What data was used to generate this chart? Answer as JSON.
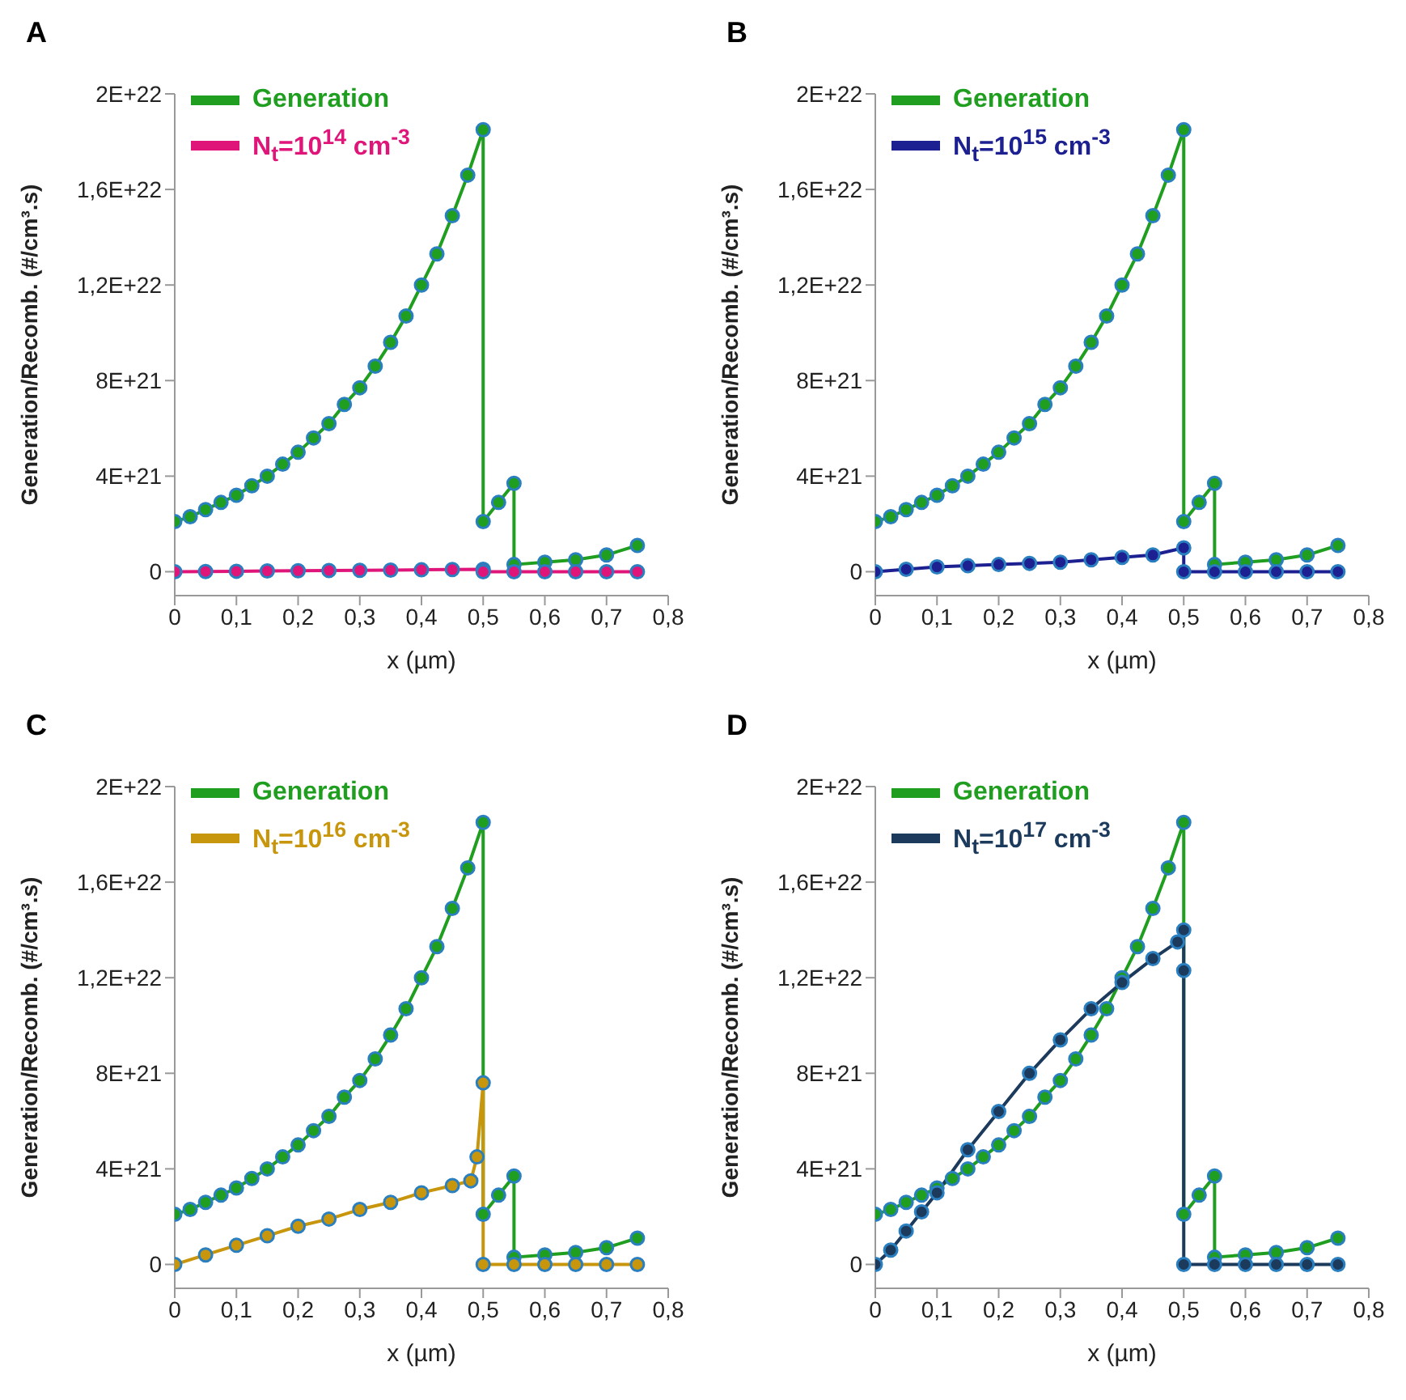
{
  "chart_data": [
    {
      "type": "line",
      "title": "A",
      "xlabel": "x (µm)",
      "ylabel": "Generation/Recomb. (#/cm³.s)",
      "xlim": [
        0,
        0.8
      ],
      "xticks": [
        {
          "value": 0,
          "label": "0"
        },
        {
          "value": 0.1,
          "label": "0,1"
        },
        {
          "value": 0.2,
          "label": "0,2"
        },
        {
          "value": 0.3,
          "label": "0,3"
        },
        {
          "value": 0.4,
          "label": "0,4"
        },
        {
          "value": 0.5,
          "label": "0,5"
        },
        {
          "value": 0.6,
          "label": "0,6"
        },
        {
          "value": 0.7,
          "label": "0,7"
        },
        {
          "value": 0.8,
          "label": "0,8"
        }
      ],
      "ylim": [
        -1e+21,
        2e+22
      ],
      "yticks": [
        {
          "value": 0,
          "label": "0"
        },
        {
          "value": 4e+21,
          "label": "4E+21"
        },
        {
          "value": 8e+21,
          "label": "8E+21"
        },
        {
          "value": 1.2e+22,
          "label": "1,2E+22"
        },
        {
          "value": 1.6e+22,
          "label": "1,6E+22"
        },
        {
          "value": 2e+22,
          "label": "2E+22"
        }
      ],
      "legend": "top left",
      "marker": "circle",
      "line_style": "solid",
      "series": [
        {
          "name": "Generation",
          "color": "#1f9e1f",
          "x": [
            0,
            0.025,
            0.05,
            0.075,
            0.1,
            0.125,
            0.15,
            0.175,
            0.2,
            0.225,
            0.25,
            0.275,
            0.3,
            0.325,
            0.35,
            0.375,
            0.4,
            0.425,
            0.45,
            0.475,
            0.5,
            0.5,
            0.525,
            0.55,
            0.55,
            0.6,
            0.65,
            0.7,
            0.75
          ],
          "values": [
            2.1e+21,
            2.3e+21,
            2.6e+21,
            2.9e+21,
            3.2e+21,
            3.6e+21,
            4e+21,
            4.5e+21,
            5e+21,
            5.6e+21,
            6.2e+21,
            7e+21,
            7.7e+21,
            8.6e+21,
            9.6e+21,
            1.07e+22,
            1.2e+22,
            1.33e+22,
            1.49e+22,
            1.66e+22,
            1.85e+22,
            2.1e+21,
            2.9e+21,
            3.7e+21,
            3e+20,
            4e+20,
            5e+20,
            7e+20,
            1.1e+21
          ]
        },
        {
          "name": "N$_{t}$=10$^{14}$ cm$^{-3}$",
          "color": "#e0157a",
          "x": [
            0,
            0.05,
            0.1,
            0.15,
            0.2,
            0.25,
            0.3,
            0.35,
            0.4,
            0.45,
            0.5,
            0.5,
            0.55,
            0.6,
            0.65,
            0.7,
            0.75
          ],
          "values": [
            0,
            1e+19,
            2e+19,
            3e+19,
            4e+19,
            5e+19,
            6e+19,
            7e+19,
            8e+19,
            9e+19,
            1e+20,
            0,
            0,
            0,
            0,
            0,
            0
          ]
        }
      ]
    },
    {
      "type": "line",
      "title": "B",
      "xlabel": "x (µm)",
      "ylabel": "Generation/Recomb. (#/cm³.s)",
      "xlim": [
        0,
        0.8
      ],
      "xticks": [
        {
          "value": 0,
          "label": "0"
        },
        {
          "value": 0.1,
          "label": "0,1"
        },
        {
          "value": 0.2,
          "label": "0,2"
        },
        {
          "value": 0.3,
          "label": "0,3"
        },
        {
          "value": 0.4,
          "label": "0,4"
        },
        {
          "value": 0.5,
          "label": "0,5"
        },
        {
          "value": 0.6,
          "label": "0,6"
        },
        {
          "value": 0.7,
          "label": "0,7"
        },
        {
          "value": 0.8,
          "label": "0,8"
        }
      ],
      "ylim": [
        -1e+21,
        2e+22
      ],
      "yticks": [
        {
          "value": 0,
          "label": "0"
        },
        {
          "value": 4e+21,
          "label": "4E+21"
        },
        {
          "value": 8e+21,
          "label": "8E+21"
        },
        {
          "value": 1.2e+22,
          "label": "1,2E+22"
        },
        {
          "value": 1.6e+22,
          "label": "1,6E+22"
        },
        {
          "value": 2e+22,
          "label": "2E+22"
        }
      ],
      "legend": "top left",
      "marker": "circle",
      "line_style": "solid",
      "series": [
        {
          "name": "Generation",
          "color": "#1f9e1f",
          "x": [
            0,
            0.025,
            0.05,
            0.075,
            0.1,
            0.125,
            0.15,
            0.175,
            0.2,
            0.225,
            0.25,
            0.275,
            0.3,
            0.325,
            0.35,
            0.375,
            0.4,
            0.425,
            0.45,
            0.475,
            0.5,
            0.5,
            0.525,
            0.55,
            0.55,
            0.6,
            0.65,
            0.7,
            0.75
          ],
          "values": [
            2.1e+21,
            2.3e+21,
            2.6e+21,
            2.9e+21,
            3.2e+21,
            3.6e+21,
            4e+21,
            4.5e+21,
            5e+21,
            5.6e+21,
            6.2e+21,
            7e+21,
            7.7e+21,
            8.6e+21,
            9.6e+21,
            1.07e+22,
            1.2e+22,
            1.33e+22,
            1.49e+22,
            1.66e+22,
            1.85e+22,
            2.1e+21,
            2.9e+21,
            3.7e+21,
            3e+20,
            4e+20,
            5e+20,
            7e+20,
            1.1e+21
          ]
        },
        {
          "name": "N$_{t}$=10$^{15}$ cm$^{-3}$",
          "color": "#1c2090",
          "x": [
            0,
            0.05,
            0.1,
            0.15,
            0.2,
            0.25,
            0.3,
            0.35,
            0.4,
            0.45,
            0.5,
            0.5,
            0.55,
            0.6,
            0.65,
            0.7,
            0.75
          ],
          "values": [
            0,
            1e+20,
            2e+20,
            2.5e+20,
            3e+20,
            3.5e+20,
            4e+20,
            5e+20,
            6e+20,
            7e+20,
            1e+21,
            0,
            0,
            0,
            0,
            0,
            0
          ]
        }
      ]
    },
    {
      "type": "line",
      "title": "C",
      "xlabel": "x (µm)",
      "ylabel": "Generation/Recomb. (#/cm³.s)",
      "xlim": [
        0,
        0.8
      ],
      "xticks": [
        {
          "value": 0,
          "label": "0"
        },
        {
          "value": 0.1,
          "label": "0,1"
        },
        {
          "value": 0.2,
          "label": "0,2"
        },
        {
          "value": 0.3,
          "label": "0,3"
        },
        {
          "value": 0.4,
          "label": "0,4"
        },
        {
          "value": 0.5,
          "label": "0,5"
        },
        {
          "value": 0.6,
          "label": "0,6"
        },
        {
          "value": 0.7,
          "label": "0,7"
        },
        {
          "value": 0.8,
          "label": "0,8"
        }
      ],
      "ylim": [
        -1e+21,
        2e+22
      ],
      "yticks": [
        {
          "value": 0,
          "label": "0"
        },
        {
          "value": 4e+21,
          "label": "4E+21"
        },
        {
          "value": 8e+21,
          "label": "8E+21"
        },
        {
          "value": 1.2e+22,
          "label": "1,2E+22"
        },
        {
          "value": 1.6e+22,
          "label": "1,6E+22"
        },
        {
          "value": 2e+22,
          "label": "2E+22"
        }
      ],
      "legend": "top left",
      "marker": "circle",
      "line_style": "solid",
      "series": [
        {
          "name": "Generation",
          "color": "#1f9e1f",
          "x": [
            0,
            0.025,
            0.05,
            0.075,
            0.1,
            0.125,
            0.15,
            0.175,
            0.2,
            0.225,
            0.25,
            0.275,
            0.3,
            0.325,
            0.35,
            0.375,
            0.4,
            0.425,
            0.45,
            0.475,
            0.5,
            0.5,
            0.525,
            0.55,
            0.55,
            0.6,
            0.65,
            0.7,
            0.75
          ],
          "values": [
            2.1e+21,
            2.3e+21,
            2.6e+21,
            2.9e+21,
            3.2e+21,
            3.6e+21,
            4e+21,
            4.5e+21,
            5e+21,
            5.6e+21,
            6.2e+21,
            7e+21,
            7.7e+21,
            8.6e+21,
            9.6e+21,
            1.07e+22,
            1.2e+22,
            1.33e+22,
            1.49e+22,
            1.66e+22,
            1.85e+22,
            2.1e+21,
            2.9e+21,
            3.7e+21,
            3e+20,
            4e+20,
            5e+20,
            7e+20,
            1.1e+21
          ]
        },
        {
          "name": "N$_{t}$=10$^{16}$ cm$^{-3}$",
          "color": "#c8960c",
          "x": [
            0,
            0.05,
            0.1,
            0.15,
            0.2,
            0.25,
            0.3,
            0.35,
            0.4,
            0.45,
            0.48,
            0.49,
            0.5,
            0.5,
            0.55,
            0.6,
            0.65,
            0.7,
            0.75
          ],
          "values": [
            0,
            4e+20,
            8e+20,
            1.2e+21,
            1.6e+21,
            1.9e+21,
            2.3e+21,
            2.6e+21,
            3e+21,
            3.3e+21,
            3.5e+21,
            4.5e+21,
            7.6e+21,
            0,
            0,
            0,
            0,
            0,
            0
          ]
        }
      ]
    },
    {
      "type": "line",
      "title": "D",
      "xlabel": "x (µm)",
      "ylabel": "Generation/Recomb. (#/cm³.s)",
      "xlim": [
        0,
        0.8
      ],
      "xticks": [
        {
          "value": 0,
          "label": "0"
        },
        {
          "value": 0.1,
          "label": "0,1"
        },
        {
          "value": 0.2,
          "label": "0,2"
        },
        {
          "value": 0.3,
          "label": "0,3"
        },
        {
          "value": 0.4,
          "label": "0,4"
        },
        {
          "value": 0.5,
          "label": "0,5"
        },
        {
          "value": 0.6,
          "label": "0,6"
        },
        {
          "value": 0.7,
          "label": "0,7"
        },
        {
          "value": 0.8,
          "label": "0,8"
        }
      ],
      "ylim": [
        -1e+21,
        2e+22
      ],
      "yticks": [
        {
          "value": 0,
          "label": "0"
        },
        {
          "value": 4e+21,
          "label": "4E+21"
        },
        {
          "value": 8e+21,
          "label": "8E+21"
        },
        {
          "value": 1.2e+22,
          "label": "1,2E+22"
        },
        {
          "value": 1.6e+22,
          "label": "1,6E+22"
        },
        {
          "value": 2e+22,
          "label": "2E+22"
        }
      ],
      "legend": "top left",
      "marker": "circle",
      "line_style": "solid",
      "series": [
        {
          "name": "Generation",
          "color": "#1f9e1f",
          "x": [
            0,
            0.025,
            0.05,
            0.075,
            0.1,
            0.125,
            0.15,
            0.175,
            0.2,
            0.225,
            0.25,
            0.275,
            0.3,
            0.325,
            0.35,
            0.375,
            0.4,
            0.425,
            0.45,
            0.475,
            0.5,
            0.5,
            0.525,
            0.55,
            0.55,
            0.6,
            0.65,
            0.7,
            0.75
          ],
          "values": [
            2.1e+21,
            2.3e+21,
            2.6e+21,
            2.9e+21,
            3.2e+21,
            3.6e+21,
            4e+21,
            4.5e+21,
            5e+21,
            5.6e+21,
            6.2e+21,
            7e+21,
            7.7e+21,
            8.6e+21,
            9.6e+21,
            1.07e+22,
            1.2e+22,
            1.33e+22,
            1.49e+22,
            1.66e+22,
            1.85e+22,
            2.1e+21,
            2.9e+21,
            3.7e+21,
            3e+20,
            4e+20,
            5e+20,
            7e+20,
            1.1e+21
          ]
        },
        {
          "name": "N$_{t}$=10$^{17}$ cm$^{-3}$",
          "color": "#1b3a5c",
          "x": [
            0,
            0.025,
            0.05,
            0.075,
            0.1,
            0.15,
            0.2,
            0.25,
            0.3,
            0.35,
            0.4,
            0.45,
            0.49,
            0.5,
            0.5,
            0.5,
            0.55,
            0.6,
            0.65,
            0.7,
            0.75
          ],
          "values": [
            0,
            6e+20,
            1.4e+21,
            2.2e+21,
            3e+21,
            4.8e+21,
            6.4e+21,
            8e+21,
            9.4e+21,
            1.07e+22,
            1.18e+22,
            1.28e+22,
            1.35e+22,
            1.4e+22,
            1.23e+22,
            0,
            0,
            0,
            0,
            0,
            0
          ]
        }
      ]
    }
  ]
}
